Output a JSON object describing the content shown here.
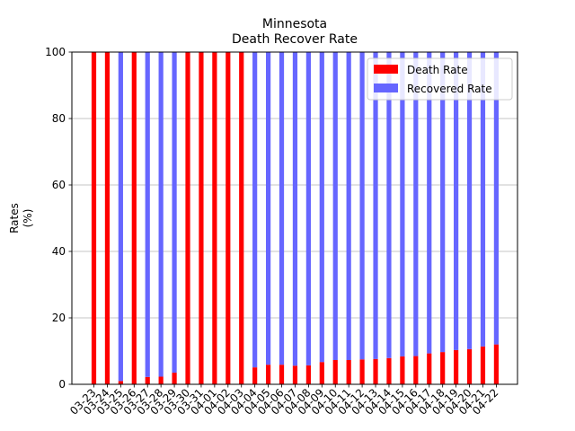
{
  "chart_data": {
    "type": "bar",
    "stacked": true,
    "title": "Minnesota",
    "subtitle": "Death Recover Rate",
    "xlabel": "",
    "ylabel": "Rates\n(%)",
    "ylim": [
      0,
      100
    ],
    "yticks": [
      0,
      20,
      40,
      60,
      80,
      100
    ],
    "grid": "y",
    "legend_position": "top-right",
    "categories": [
      "03-23",
      "03-24",
      "03-25",
      "03-26",
      "03-27",
      "03-28",
      "03-29",
      "03-30",
      "03-31",
      "04-01",
      "04-02",
      "04-03",
      "04-04",
      "04-05",
      "04-06",
      "04-07",
      "04-08",
      "04-09",
      "04-10",
      "04-11",
      "04-12",
      "04-13",
      "04-14",
      "04-15",
      "04-16",
      "04-17",
      "04-18",
      "04-19",
      "04-20",
      "04-21",
      "04-22"
    ],
    "series": [
      {
        "name": "Death Rate",
        "color": "#ff0000",
        "values": [
          100,
          100,
          1,
          100,
          2.2,
          2.3,
          3.5,
          100,
          100,
          100,
          100,
          100,
          5.1,
          5.9,
          5.9,
          5.6,
          5.7,
          6.7,
          7.3,
          7.3,
          7.5,
          7.6,
          7.9,
          8.4,
          8.5,
          9.3,
          9.7,
          10.3,
          10.6,
          11.4,
          12.0
        ]
      },
      {
        "name": "Recovered Rate",
        "color": "#6666ff",
        "values": [
          0,
          0,
          99,
          0,
          97.8,
          97.7,
          96.5,
          0,
          0,
          0,
          0,
          0,
          94.9,
          94.1,
          94.1,
          94.4,
          94.3,
          93.3,
          92.7,
          92.7,
          92.5,
          92.4,
          92.1,
          91.6,
          91.5,
          90.7,
          90.3,
          89.7,
          89.4,
          88.6,
          88.0
        ]
      }
    ]
  }
}
